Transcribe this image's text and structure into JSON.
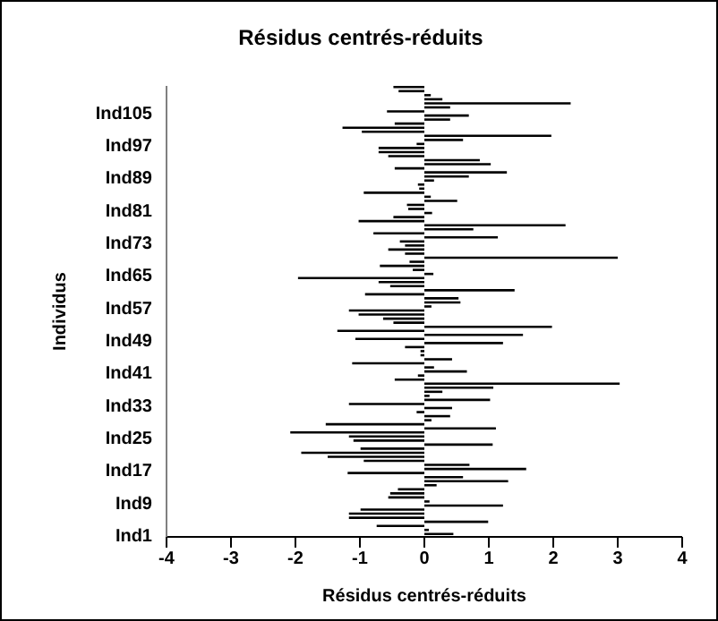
{
  "chart_data": {
    "type": "bar",
    "orientation": "horizontal",
    "title": "Résidus centrés-réduits",
    "xlabel": "Résidus centrés-réduits",
    "ylabel": "Individus",
    "categories": [
      null,
      null,
      null,
      null,
      null,
      null,
      "Ind105",
      null,
      null,
      null,
      null,
      null,
      null,
      null,
      "Ind97",
      null,
      null,
      null,
      null,
      null,
      null,
      null,
      "Ind89",
      null,
      null,
      null,
      null,
      null,
      null,
      null,
      "Ind81",
      null,
      null,
      null,
      null,
      null,
      null,
      null,
      "Ind73",
      null,
      null,
      null,
      null,
      null,
      null,
      null,
      "Ind65",
      null,
      null,
      null,
      null,
      null,
      null,
      null,
      "Ind57",
      null,
      null,
      null,
      null,
      null,
      null,
      null,
      "Ind49",
      null,
      null,
      null,
      null,
      null,
      null,
      null,
      "Ind41",
      null,
      null,
      null,
      null,
      null,
      null,
      null,
      "Ind33",
      null,
      null,
      null,
      null,
      null,
      null,
      null,
      "Ind25",
      null,
      null,
      null,
      null,
      null,
      null,
      null,
      "Ind17",
      null,
      null,
      null,
      null,
      null,
      null,
      null,
      "Ind9",
      null,
      null,
      null,
      null,
      null,
      null,
      null,
      "Ind1"
    ],
    "values": [
      -0.48,
      -0.4,
      0.1,
      0.28,
      2.27,
      0.4,
      -0.58,
      0.69,
      0.4,
      -0.46,
      -1.27,
      -0.97,
      1.97,
      0.6,
      -0.12,
      -0.71,
      -0.71,
      -0.56,
      0.86,
      1.03,
      -0.46,
      1.28,
      0.69,
      0.15,
      -0.1,
      -0.08,
      -0.94,
      0.1,
      0.51,
      -0.27,
      -0.25,
      0.12,
      -0.48,
      -1.02,
      2.19,
      0.76,
      -0.79,
      1.14,
      -0.38,
      -0.3,
      -0.56,
      -0.3,
      3.0,
      -0.23,
      -0.69,
      -0.18,
      0.14,
      -1.96,
      -0.71,
      -0.53,
      1.4,
      -0.92,
      0.53,
      0.56,
      0.11,
      -1.17,
      -1.02,
      -0.64,
      -0.48,
      1.98,
      -1.35,
      1.53,
      -1.07,
      1.22,
      -0.3,
      -0.06,
      -0.06,
      0.43,
      -1.12,
      0.15,
      0.66,
      -0.1,
      -0.46,
      3.03,
      1.07,
      0.28,
      0.08,
      1.02,
      -1.17,
      0.43,
      -0.12,
      0.4,
      0.11,
      -1.53,
      1.11,
      -2.08,
      -1.17,
      -1.1,
      1.06,
      -0.99,
      -1.91,
      -1.5,
      -0.94,
      0.7,
      1.58,
      -1.19,
      0.6,
      1.3,
      0.19,
      -0.41,
      -0.53,
      -0.56,
      0.08,
      1.22,
      -0.99,
      -1.17,
      -1.17,
      0.99,
      -0.74,
      0.07,
      0.45
    ],
    "color": "#000000",
    "xlim": [
      -4,
      4
    ],
    "xticks": [
      -4,
      -3,
      -2,
      -1,
      0,
      1,
      2,
      3,
      4
    ],
    "grid": false,
    "legend": false
  }
}
